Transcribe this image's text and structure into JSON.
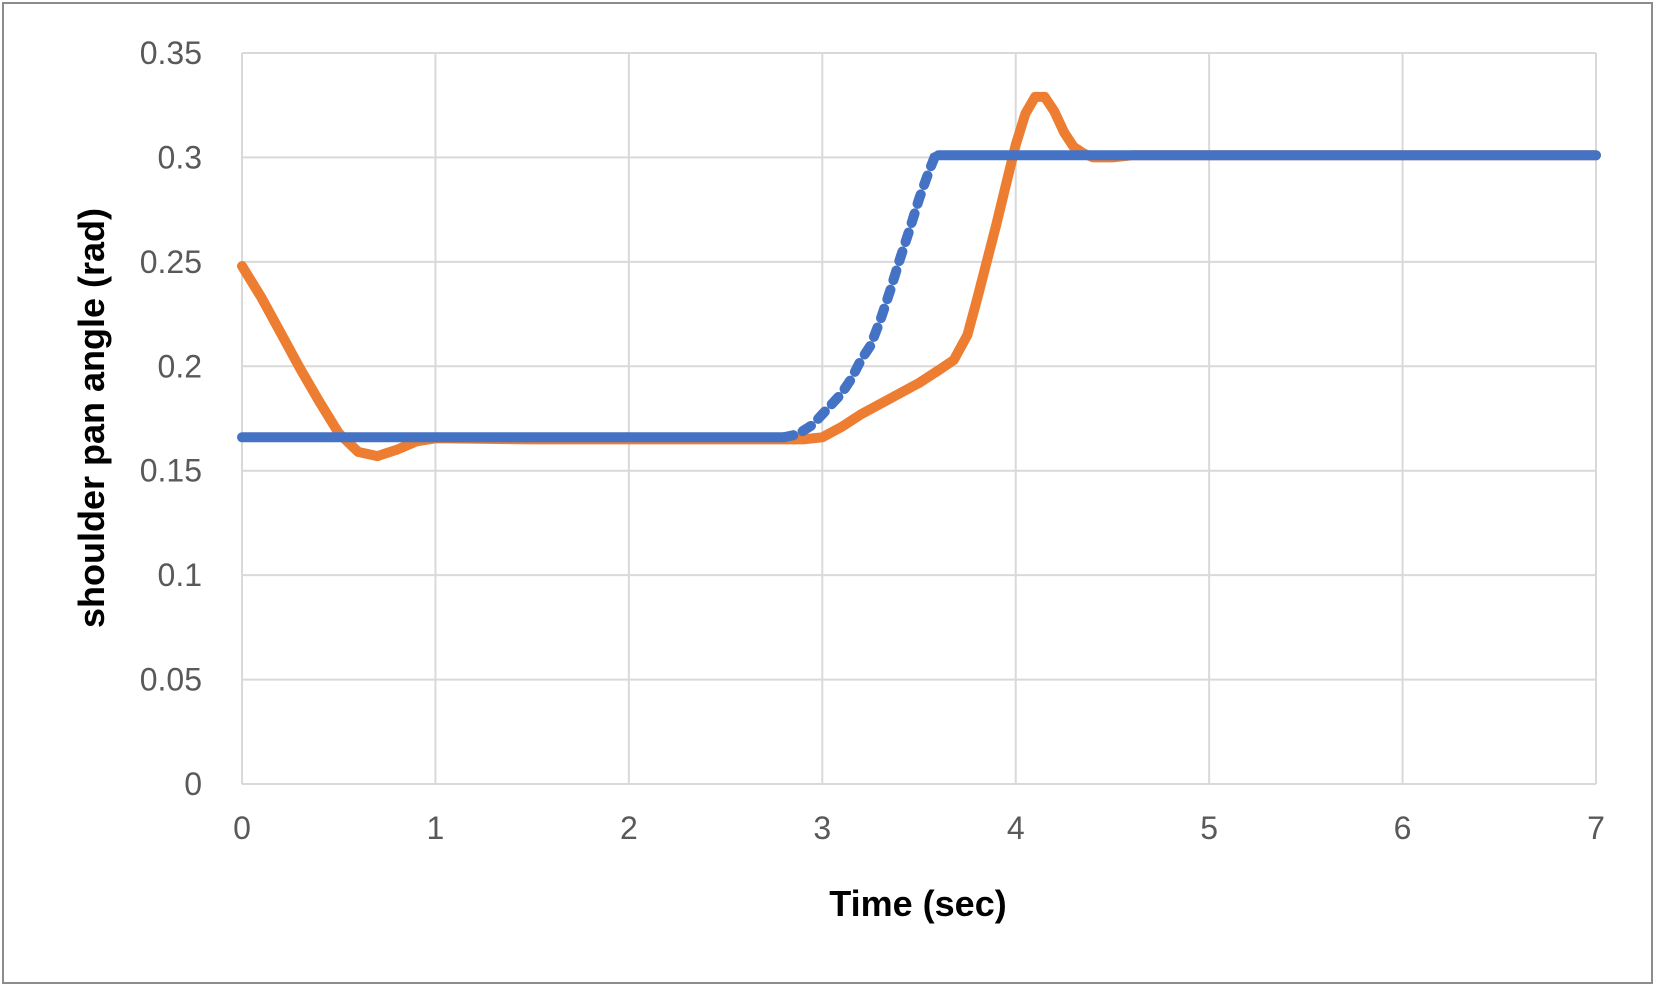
{
  "chart_data": {
    "type": "line",
    "title": "",
    "xlabel": "Time (sec)",
    "ylabel": "shoulder pan angle (rad)",
    "xlim": [
      0,
      7
    ],
    "ylim": [
      0,
      0.35
    ],
    "x_ticks": [
      0,
      1,
      2,
      3,
      4,
      5,
      6,
      7
    ],
    "x_tick_labels": [
      "0",
      "1",
      "2",
      "3",
      "4",
      "5",
      "6",
      "7"
    ],
    "y_ticks": [
      0,
      0.05,
      0.1,
      0.15,
      0.2,
      0.25,
      0.3,
      0.35
    ],
    "y_tick_labels": [
      "0",
      "0.05",
      "0.1",
      "0.15",
      "0.2",
      "0.25",
      "0.3",
      "0.35"
    ],
    "grid": true,
    "legend": "none",
    "series": [
      {
        "color": "#ED7D31",
        "style": "solid",
        "points": [
          [
            0,
            0.248
          ],
          [
            0.1,
            0.233
          ],
          [
            0.2,
            0.216
          ],
          [
            0.3,
            0.199
          ],
          [
            0.4,
            0.183
          ],
          [
            0.5,
            0.168
          ],
          [
            0.6,
            0.159
          ],
          [
            0.7,
            0.157
          ],
          [
            0.8,
            0.16
          ],
          [
            0.9,
            0.164
          ],
          [
            1.0,
            0.1655
          ],
          [
            1.5,
            0.165
          ],
          [
            2.0,
            0.165
          ],
          [
            2.5,
            0.165
          ],
          [
            2.9,
            0.165
          ],
          [
            3.0,
            0.166
          ],
          [
            3.1,
            0.171
          ],
          [
            3.2,
            0.177
          ],
          [
            3.3,
            0.182
          ],
          [
            3.4,
            0.187
          ],
          [
            3.5,
            0.192
          ],
          [
            3.6,
            0.198
          ],
          [
            3.68,
            0.203
          ],
          [
            3.75,
            0.215
          ],
          [
            3.8,
            0.232
          ],
          [
            3.85,
            0.25
          ],
          [
            3.9,
            0.268
          ],
          [
            3.95,
            0.287
          ],
          [
            4.0,
            0.306
          ],
          [
            4.05,
            0.321
          ],
          [
            4.1,
            0.329
          ],
          [
            4.15,
            0.329
          ],
          [
            4.2,
            0.322
          ],
          [
            4.25,
            0.312
          ],
          [
            4.3,
            0.305
          ],
          [
            4.35,
            0.302
          ],
          [
            4.4,
            0.3
          ],
          [
            4.5,
            0.3
          ],
          [
            4.6,
            0.301
          ],
          [
            5.0,
            0.301
          ],
          [
            6.0,
            0.301
          ],
          [
            7.0,
            0.301
          ]
        ]
      },
      {
        "color": "#4472C4",
        "style": "dotted",
        "points": [
          [
            0,
            0.166
          ],
          [
            0.5,
            0.166
          ],
          [
            1.0,
            0.166
          ],
          [
            1.5,
            0.166
          ],
          [
            2.0,
            0.166
          ],
          [
            2.5,
            0.166
          ],
          [
            2.8,
            0.166
          ],
          [
            2.85,
            0.167
          ],
          [
            2.9,
            0.169
          ],
          [
            2.95,
            0.172
          ],
          [
            3.0,
            0.177
          ],
          [
            3.05,
            0.182
          ],
          [
            3.1,
            0.187
          ],
          [
            3.15,
            0.194
          ],
          [
            3.2,
            0.203
          ],
          [
            3.25,
            0.21
          ],
          [
            3.3,
            0.222
          ],
          [
            3.35,
            0.236
          ],
          [
            3.4,
            0.251
          ],
          [
            3.45,
            0.265
          ],
          [
            3.5,
            0.28
          ],
          [
            3.55,
            0.293
          ],
          [
            3.58,
            0.3
          ],
          [
            3.6,
            0.301
          ],
          [
            4.0,
            0.301
          ],
          [
            5.0,
            0.301
          ],
          [
            6.0,
            0.301
          ],
          [
            7.0,
            0.301
          ]
        ]
      }
    ]
  }
}
